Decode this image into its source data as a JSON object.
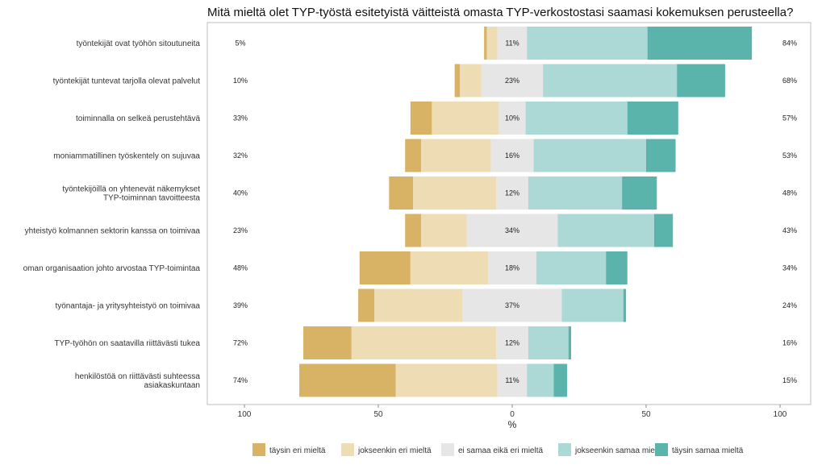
{
  "chart_data": {
    "type": "bar",
    "subtype": "diverging-stacked-horizontal",
    "title": "Mitä mieltä olet TYP-työstä esitetyistä väitteistä omasta TYP-verkostostasi saamasi kokemuksen perusteella?",
    "xlabel": "%",
    "ylabel": "",
    "xlim": [
      -100,
      100
    ],
    "x_ticks": [
      {
        "value": -100,
        "label": "100"
      },
      {
        "value": -50,
        "label": "50"
      },
      {
        "value": 0,
        "label": "0"
      },
      {
        "value": 50,
        "label": "50"
      },
      {
        "value": 100,
        "label": "100"
      }
    ],
    "legend_position": "bottom",
    "grid": false,
    "series": [
      {
        "name": "täysin eri mieltä",
        "color": "#D8B365",
        "values": [
          1,
          2,
          8,
          6,
          9,
          6,
          19,
          6,
          18,
          36
        ]
      },
      {
        "name": "jokseenkin eri mieltä",
        "color": "#EDDCB4",
        "values": [
          4,
          8,
          25,
          26,
          31,
          17,
          29,
          33,
          54,
          38
        ]
      },
      {
        "name": "ei samaa eikä eri mieltä",
        "color": "#E6E6E6",
        "values": [
          11,
          23,
          10,
          16,
          12,
          34,
          18,
          37,
          12,
          11
        ]
      },
      {
        "name": "jokseenkin samaa mieltä",
        "color": "#ACD9D5",
        "values": [
          45,
          50,
          38,
          42,
          35,
          36,
          26,
          23,
          15,
          10
        ]
      },
      {
        "name": "täysin samaa mieltä",
        "color": "#5AB4AC",
        "values": [
          39,
          18,
          19,
          11,
          13,
          7,
          8,
          1,
          1,
          5
        ]
      }
    ],
    "categories": [
      "työntekijät ovat työhön sitoutuneita",
      "työntekijät tuntevat tarjolla olevat palvelut",
      "toiminnalla on selkeä perustehtävä",
      "moniammatillinen työskentely on sujuvaa",
      "työntekijöillä on yhtenevät näkemykset TYP-toiminnan tavoitteesta",
      "yhteistyö kolmannen sektorin kanssa on toimivaa",
      "oman organisaation johto arvostaa TYP-toimintaa",
      "työnantaja- ja yritysyhteistyö on toimivaa",
      "TYP-työhön on saatavilla riittävästi tukea",
      "henkilöstöä on riittävästi suhteessa asiakaskuntaan"
    ],
    "category_lines": [
      [
        "työntekijät ovat työhön sitoutuneita"
      ],
      [
        "työntekijät tuntevat tarjolla olevat palvelut"
      ],
      [
        "toiminnalla on selkeä perustehtävä"
      ],
      [
        "moniammatillinen työskentely on sujuvaa"
      ],
      [
        "työntekijöillä on yhtenevät näkemykset",
        "TYP-toiminnan tavoitteesta"
      ],
      [
        "yhteistyö kolmannen sektorin kanssa on toimivaa"
      ],
      [
        "oman organisaation johto arvostaa TYP-toimintaa"
      ],
      [
        "työnantaja- ja yritysyhteistyö on toimivaa"
      ],
      [
        "TYP-työhön on saatavilla riittävästi tukea"
      ],
      [
        "henkilöstöä on riittävästi suhteessa",
        "asiakaskuntaan"
      ]
    ],
    "left_labels": [
      "5%",
      "10%",
      "33%",
      "32%",
      "40%",
      "23%",
      "48%",
      "39%",
      "72%",
      "74%"
    ],
    "center_labels": [
      "11%",
      "23%",
      "10%",
      "16%",
      "12%",
      "34%",
      "18%",
      "37%",
      "12%",
      "11%"
    ],
    "right_labels": [
      "84%",
      "68%",
      "57%",
      "53%",
      "48%",
      "43%",
      "34%",
      "24%",
      "16%",
      "15%"
    ]
  }
}
